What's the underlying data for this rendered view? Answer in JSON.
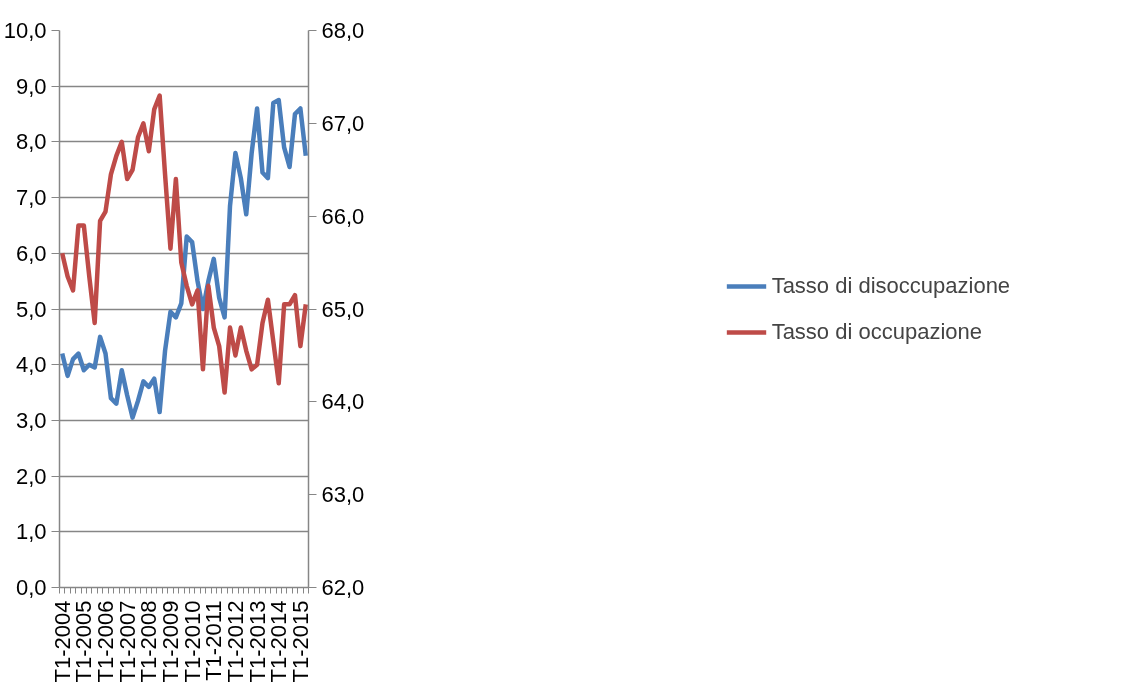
{
  "chart_data": {
    "type": "line",
    "categories": [
      "T1-2004",
      null,
      null,
      null,
      "T1-2005",
      null,
      null,
      null,
      "T1-2006",
      null,
      null,
      null,
      "T1-2007",
      null,
      null,
      null,
      "T1-2008",
      null,
      null,
      null,
      "T1-2009",
      null,
      null,
      null,
      "T1-2010",
      null,
      null,
      null,
      "T1-2011",
      null,
      null,
      null,
      "T1-2012",
      null,
      null,
      null,
      "T1-2013",
      null,
      null,
      null,
      "T1-2014",
      null,
      null,
      null,
      "T1-2015",
      null
    ],
    "series": [
      {
        "name": "Tasso di disoccupazione",
        "color": "#4a7ebb",
        "values": [
          4.2,
          3.8,
          4.1,
          4.2,
          3.9,
          4.0,
          3.95,
          4.5,
          4.2,
          3.4,
          3.3,
          3.9,
          3.45,
          3.05,
          3.35,
          3.7,
          3.6,
          3.75,
          3.15,
          4.25,
          4.95,
          4.85,
          5.1,
          6.3,
          6.2,
          5.5,
          5.0,
          5.5,
          5.9,
          5.2,
          4.85,
          6.85,
          7.8,
          7.35,
          6.7,
          7.8,
          8.6,
          7.45,
          7.35,
          8.7,
          8.75,
          7.9,
          7.55,
          8.5,
          8.6,
          7.75
        ]
      },
      {
        "name": "Tasso di occupazione",
        "color": "#be4b48",
        "axis": "y2",
        "values": [
          65.6,
          65.35,
          65.2,
          65.9,
          65.9,
          65.35,
          64.85,
          65.95,
          66.05,
          66.45,
          66.65,
          66.8,
          66.4,
          66.5,
          66.85,
          67.0,
          66.7,
          67.15,
          67.3,
          66.45,
          65.65,
          66.4,
          65.5,
          65.25,
          65.05,
          65.2,
          64.35,
          65.25,
          64.8,
          64.6,
          64.1,
          64.8,
          64.5,
          64.8,
          64.55,
          64.35,
          64.4,
          64.85,
          65.1,
          64.65,
          64.2,
          65.05,
          65.05,
          65.15,
          64.6,
          65.05
        ]
      }
    ],
    "ylim": [
      0,
      10
    ],
    "yticks": [
      {
        "value": 0,
        "label": "0,0"
      },
      {
        "value": 1,
        "label": "1,0"
      },
      {
        "value": 2,
        "label": "2,0"
      },
      {
        "value": 3,
        "label": "3,0"
      },
      {
        "value": 4,
        "label": "4,0"
      },
      {
        "value": 5,
        "label": "5,0"
      },
      {
        "value": 6,
        "label": "6,0"
      },
      {
        "value": 7,
        "label": "7,0"
      },
      {
        "value": 8,
        "label": "8,0"
      },
      {
        "value": 9,
        "label": "9,0"
      },
      {
        "value": 10,
        "label": "10,0"
      }
    ],
    "y2lim": [
      62,
      68
    ],
    "y2ticks": [
      {
        "value": 62,
        "label": "62,0"
      },
      {
        "value": 63,
        "label": "63,0"
      },
      {
        "value": 64,
        "label": "64,0"
      },
      {
        "value": 65,
        "label": "65,0"
      },
      {
        "value": 66,
        "label": "66,0"
      },
      {
        "value": 67,
        "label": "67,0"
      },
      {
        "value": 68,
        "label": "68,0"
      }
    ],
    "grid": "y",
    "legend": "right",
    "marker": "none",
    "line_style": "solid"
  }
}
